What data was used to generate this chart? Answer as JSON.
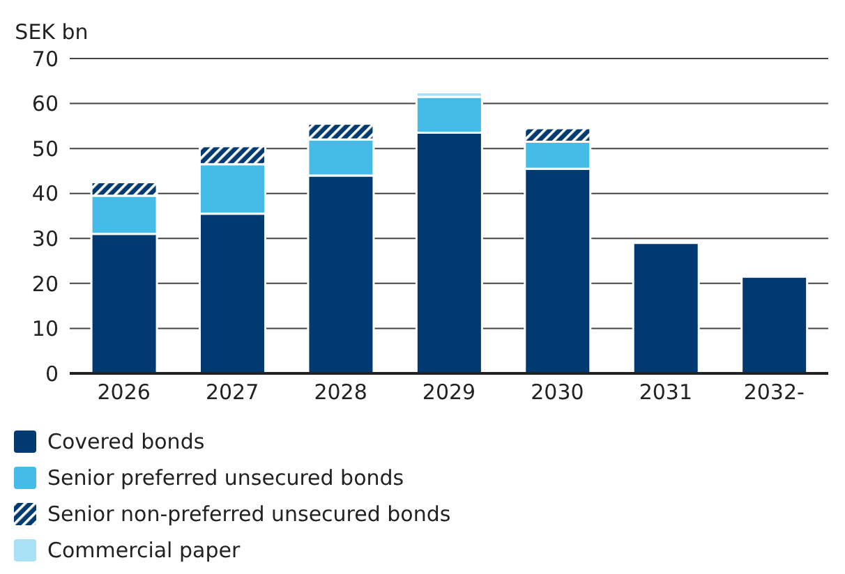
{
  "chart_data": {
    "type": "bar",
    "stacked": true,
    "ylabel": "SEK bn",
    "categories": [
      "2026",
      "2027",
      "2028",
      "2029",
      "2030",
      "2031",
      "2032-"
    ],
    "series": [
      {
        "name": "Covered bonds",
        "color": "#003a70",
        "values": [
          31,
          35.5,
          44,
          53.5,
          45.5,
          29,
          21.5
        ]
      },
      {
        "name": "Senior preferred unsecured bonds",
        "color": "#45bbe8",
        "values": [
          8.5,
          11,
          8,
          8,
          6,
          null,
          null
        ]
      },
      {
        "name": "Senior non-preferred unsecured bonds",
        "color": "#003a70",
        "values": [
          3,
          4,
          3.5,
          null,
          3,
          null,
          null
        ]
      },
      {
        "name": "Commercial paper",
        "color": "#a8e0f5",
        "values": [
          null,
          null,
          null,
          1,
          null,
          null,
          null
        ]
      }
    ],
    "ylim": [
      0,
      70
    ],
    "yticks": [
      0,
      10,
      20,
      30,
      40,
      50,
      60,
      70
    ],
    "grid": "y",
    "legend": "bottom"
  }
}
